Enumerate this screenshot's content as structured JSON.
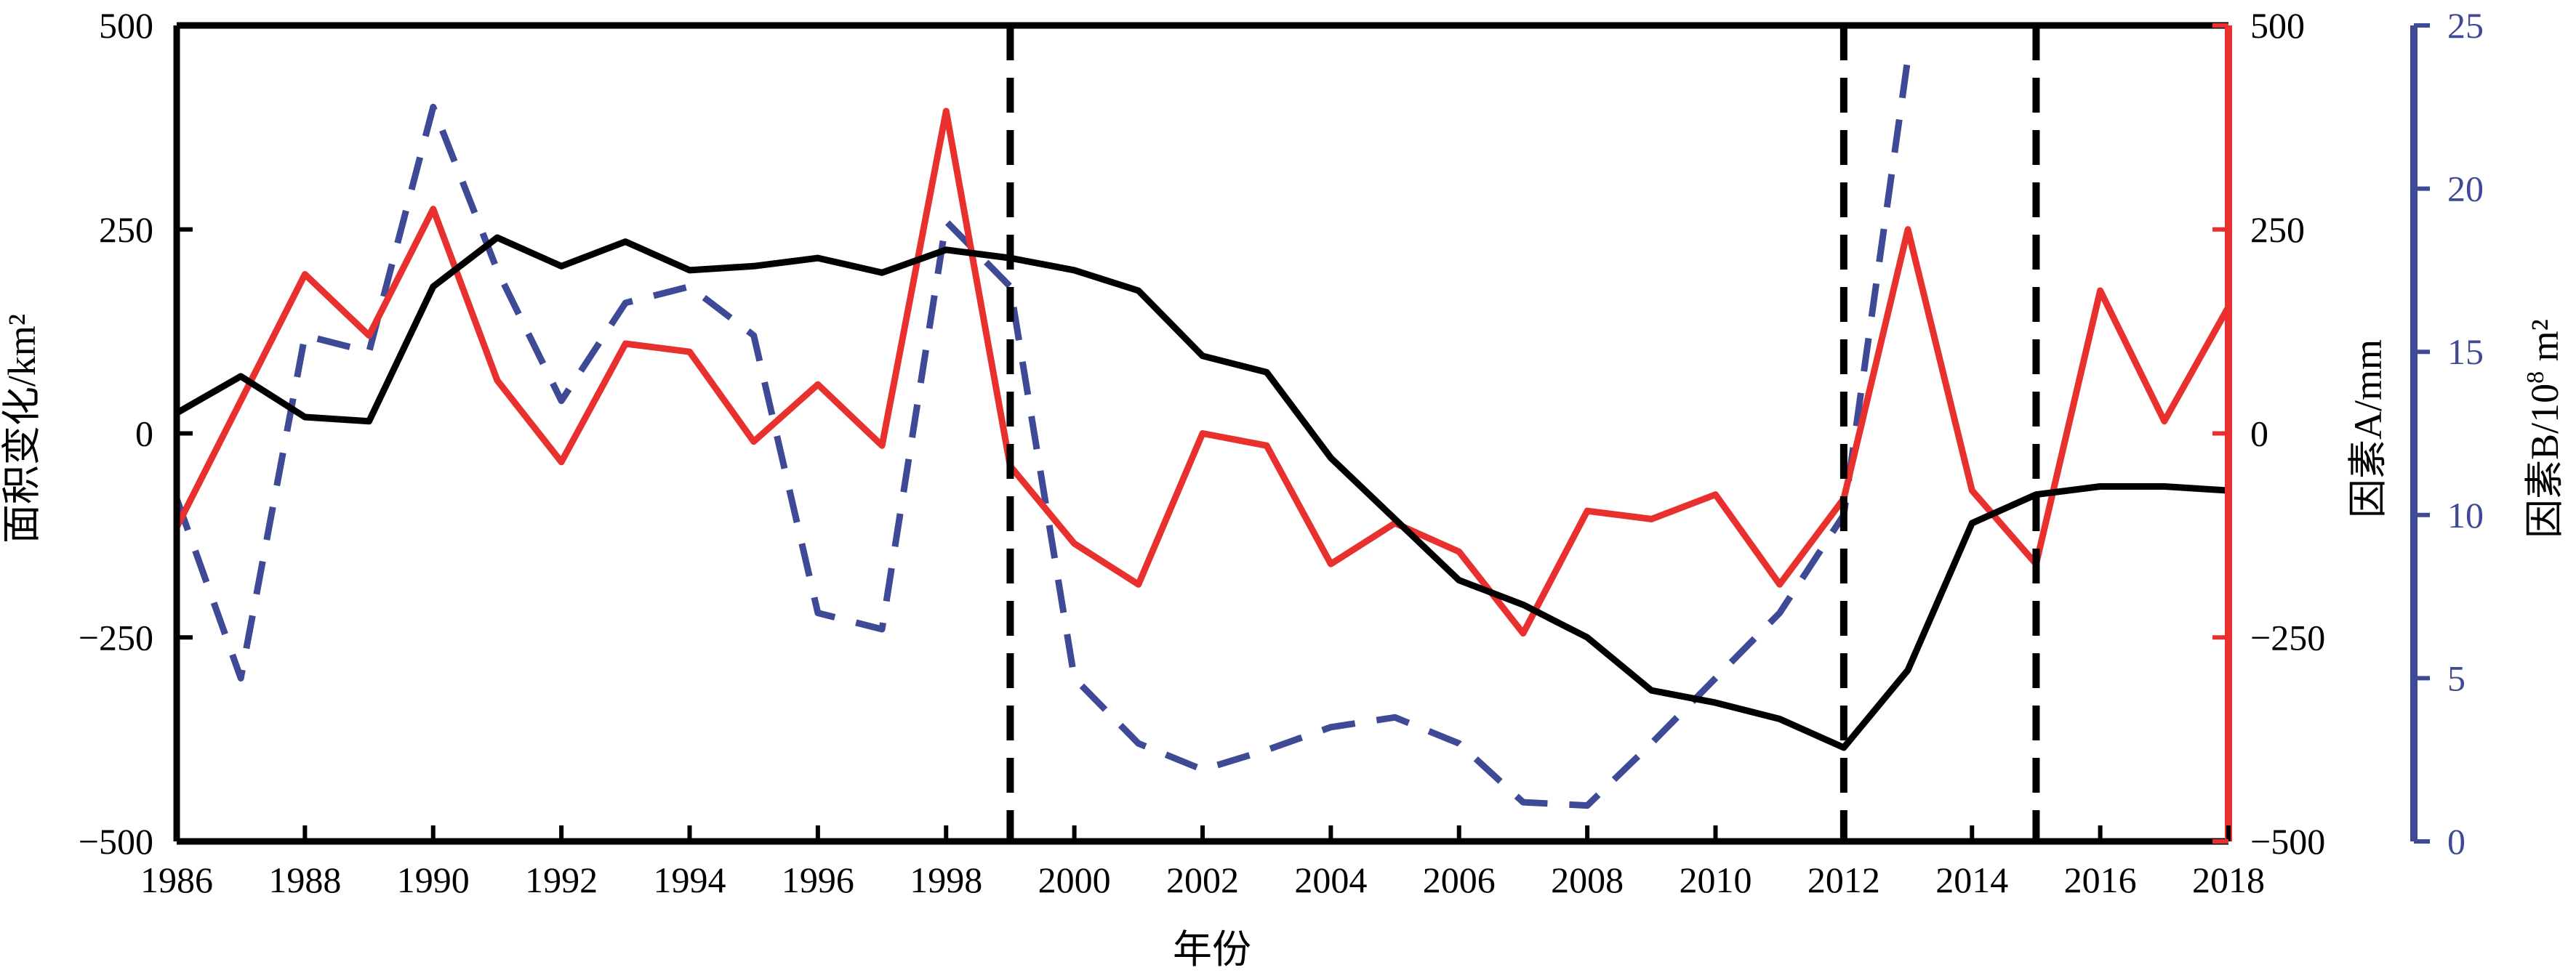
{
  "chart_data": {
    "type": "line",
    "xlabel": "年份",
    "ylabel_left": "面积变化/km²",
    "ylabel_right_a": "因素A/mm",
    "ylabel_right_b_main": "因素B/10",
    "ylabel_right_b_exp": "8",
    "ylabel_right_b_tail": " m²",
    "xlim": [
      1986,
      2018
    ],
    "ylim_left": [
      -500,
      500
    ],
    "ylim_a": [
      -500,
      500
    ],
    "ylim_b": [
      0,
      25
    ],
    "x_ticks": [
      1986,
      1988,
      1990,
      1992,
      1994,
      1996,
      1998,
      2000,
      2002,
      2004,
      2006,
      2008,
      2010,
      2012,
      2014,
      2016,
      2018
    ],
    "y_ticks_left": [
      500,
      250,
      0,
      -250,
      -500
    ],
    "y_ticks_left_labels": [
      "500",
      "250",
      "0",
      "−250",
      "−500"
    ],
    "y_ticks_a": [
      500,
      250,
      0,
      -250,
      -500
    ],
    "y_ticks_a_labels": [
      "500",
      "250",
      "0",
      "−250",
      "−500"
    ],
    "y_ticks_b": [
      25,
      20,
      15,
      10,
      5,
      0
    ],
    "y_ticks_b_labels": [
      "25",
      "20",
      "15",
      "10",
      "5",
      "0"
    ],
    "vlines": [
      1999,
      2012,
      2015
    ],
    "colors": {
      "area": "#000000",
      "a": "#e8312f",
      "b": "#3f4a96",
      "vline": "#000000",
      "frame": "#000000"
    },
    "series": [
      {
        "axis": "left",
        "style": "solid",
        "color": "#000000",
        "x": [
          1986,
          1987,
          1988,
          1989,
          1990,
          1991,
          1992,
          1993,
          1994,
          1995,
          1996,
          1997,
          1998,
          1999,
          2000,
          2001,
          2002,
          2003,
          2004,
          2005,
          2006,
          2007,
          2008,
          2009,
          2010,
          2011,
          2012,
          2013,
          2014,
          2015,
          2016,
          2017,
          2018
        ],
        "values": [
          25,
          70,
          20,
          15,
          180,
          240,
          205,
          235,
          200,
          205,
          215,
          197,
          225,
          215,
          200,
          175,
          95,
          75,
          -30,
          -105,
          -180,
          -210,
          -250,
          -315,
          -330,
          -350,
          -385,
          -290,
          -110,
          -75,
          -65,
          -65,
          -70
        ]
      },
      {
        "axis": "a",
        "style": "solid",
        "color": "#e8312f",
        "x": [
          1986,
          1987,
          1988,
          1989,
          1990,
          1991,
          1992,
          1993,
          1994,
          1995,
          1996,
          1997,
          1998,
          1999,
          2000,
          2001,
          2002,
          2003,
          2004,
          2005,
          2006,
          2007,
          2008,
          2009,
          2010,
          2011,
          2012,
          2013,
          2014,
          2015,
          2016,
          2017,
          2018
        ],
        "values": [
          -115,
          40,
          195,
          120,
          275,
          65,
          -35,
          110,
          100,
          -10,
          60,
          -15,
          395,
          -40,
          -135,
          -185,
          0,
          -15,
          -160,
          -110,
          -145,
          -245,
          -95,
          -105,
          -75,
          -185,
          -80,
          250,
          -70,
          -160,
          175,
          15,
          155
        ]
      },
      {
        "axis": "b",
        "style": "dashed",
        "color": "#3f4a96",
        "x": [
          1986,
          1987,
          1988,
          1989,
          1990,
          1991,
          1992,
          1993,
          1994,
          1995,
          1996,
          1997,
          1998,
          1999,
          2000,
          2001,
          2002,
          2003,
          2004,
          2005,
          2006,
          2007,
          2008,
          2009,
          2010,
          2011,
          2012,
          2013
        ],
        "values": [
          10.5,
          5,
          15.5,
          15,
          22.5,
          17.5,
          13.5,
          16.5,
          17,
          15.5,
          7,
          6.5,
          19,
          17,
          5,
          3,
          2.2,
          2.8,
          3.5,
          3.8,
          3,
          1.2,
          1.1,
          3,
          5,
          7,
          10,
          24
        ]
      }
    ]
  }
}
